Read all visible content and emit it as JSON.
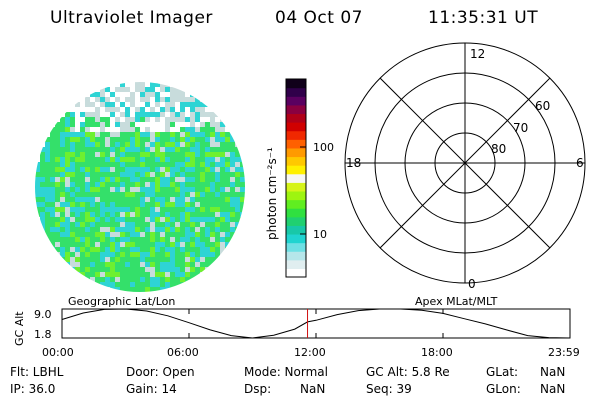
{
  "header": {
    "title": "Ultraviolet Imager",
    "date": "04 Oct 07",
    "time": "11:35:31 UT"
  },
  "image_panel": {
    "colors": {
      "light": "#c8dcdc",
      "cyan": "#2ed4d4",
      "green": "#34e06a",
      "lime": "#6ef030"
    }
  },
  "colorbar": {
    "label": "photon cm⁻²s⁻¹",
    "ticks": [
      "100",
      "10"
    ],
    "colors": [
      "#ffffff",
      "#e0eef0",
      "#b6e6ea",
      "#6ee0e4",
      "#20d4d0",
      "#18c8a8",
      "#20d070",
      "#30e040",
      "#60ee20",
      "#9ef410",
      "#d6f41a",
      "#f6f6f4",
      "#fff000",
      "#ffc800",
      "#ff9a00",
      "#ff6000",
      "#f02800",
      "#d00000",
      "#b00018",
      "#8a0040",
      "#5a0060",
      "#30004a",
      "#10001a"
    ]
  },
  "polar": {
    "labels_mlt": [
      "12",
      "18",
      "6",
      "0"
    ],
    "labels_mlat": [
      "60",
      "70",
      "80"
    ]
  },
  "timeline": {
    "ylabel": "GC Alt",
    "left_title": "Geographic Lat/Lon",
    "right_title": "Apex MLat/MLT",
    "y_ticks": [
      "9.0",
      "1.8"
    ],
    "x_ticks": [
      "00:00",
      "06:00",
      "12:00",
      "18:00",
      "23:59"
    ]
  },
  "info": {
    "row1": {
      "flt": "Flt: LBHL",
      "door": "Door: Open",
      "mode": "Mode: Normal",
      "gcalt": "GC Alt: 5.8 Re",
      "glat_label": "GLat:",
      "glat_value": "NaN"
    },
    "row2": {
      "ip": "IP: 36.0",
      "gain": "Gain: 14",
      "dsp_label": "Dsp:",
      "dsp_value": "NaN",
      "seq": "Seq: 39",
      "glon_label": "GLon:",
      "glon_value": "NaN"
    }
  },
  "chart_data": [
    {
      "type": "line",
      "title": "",
      "xlabel": "",
      "ylabel": "GC Alt",
      "ylim": [
        1.8,
        9.0
      ],
      "x": [
        0,
        1,
        2,
        3,
        4,
        5,
        6,
        7,
        8,
        9,
        10,
        11,
        11.6,
        12,
        13,
        14,
        15,
        16,
        17,
        18,
        19,
        20,
        21,
        22,
        23,
        24
      ],
      "series": [
        {
          "values": [
            6.4,
            8.0,
            8.9,
            9.0,
            8.5,
            7.3,
            5.6,
            3.8,
            2.4,
            1.8,
            2.5,
            4.0,
            5.8,
            6.2,
            7.6,
            8.6,
            9.0,
            9.0,
            8.7,
            7.9,
            6.6,
            5.3,
            3.8,
            2.4,
            1.9,
            1.8
          ]
        }
      ],
      "markers": [
        {
          "x": 11.6,
          "label": "current time"
        }
      ]
    },
    {
      "type": "heatmap",
      "colorbar_ticks": [
        100,
        10
      ]
    }
  ]
}
